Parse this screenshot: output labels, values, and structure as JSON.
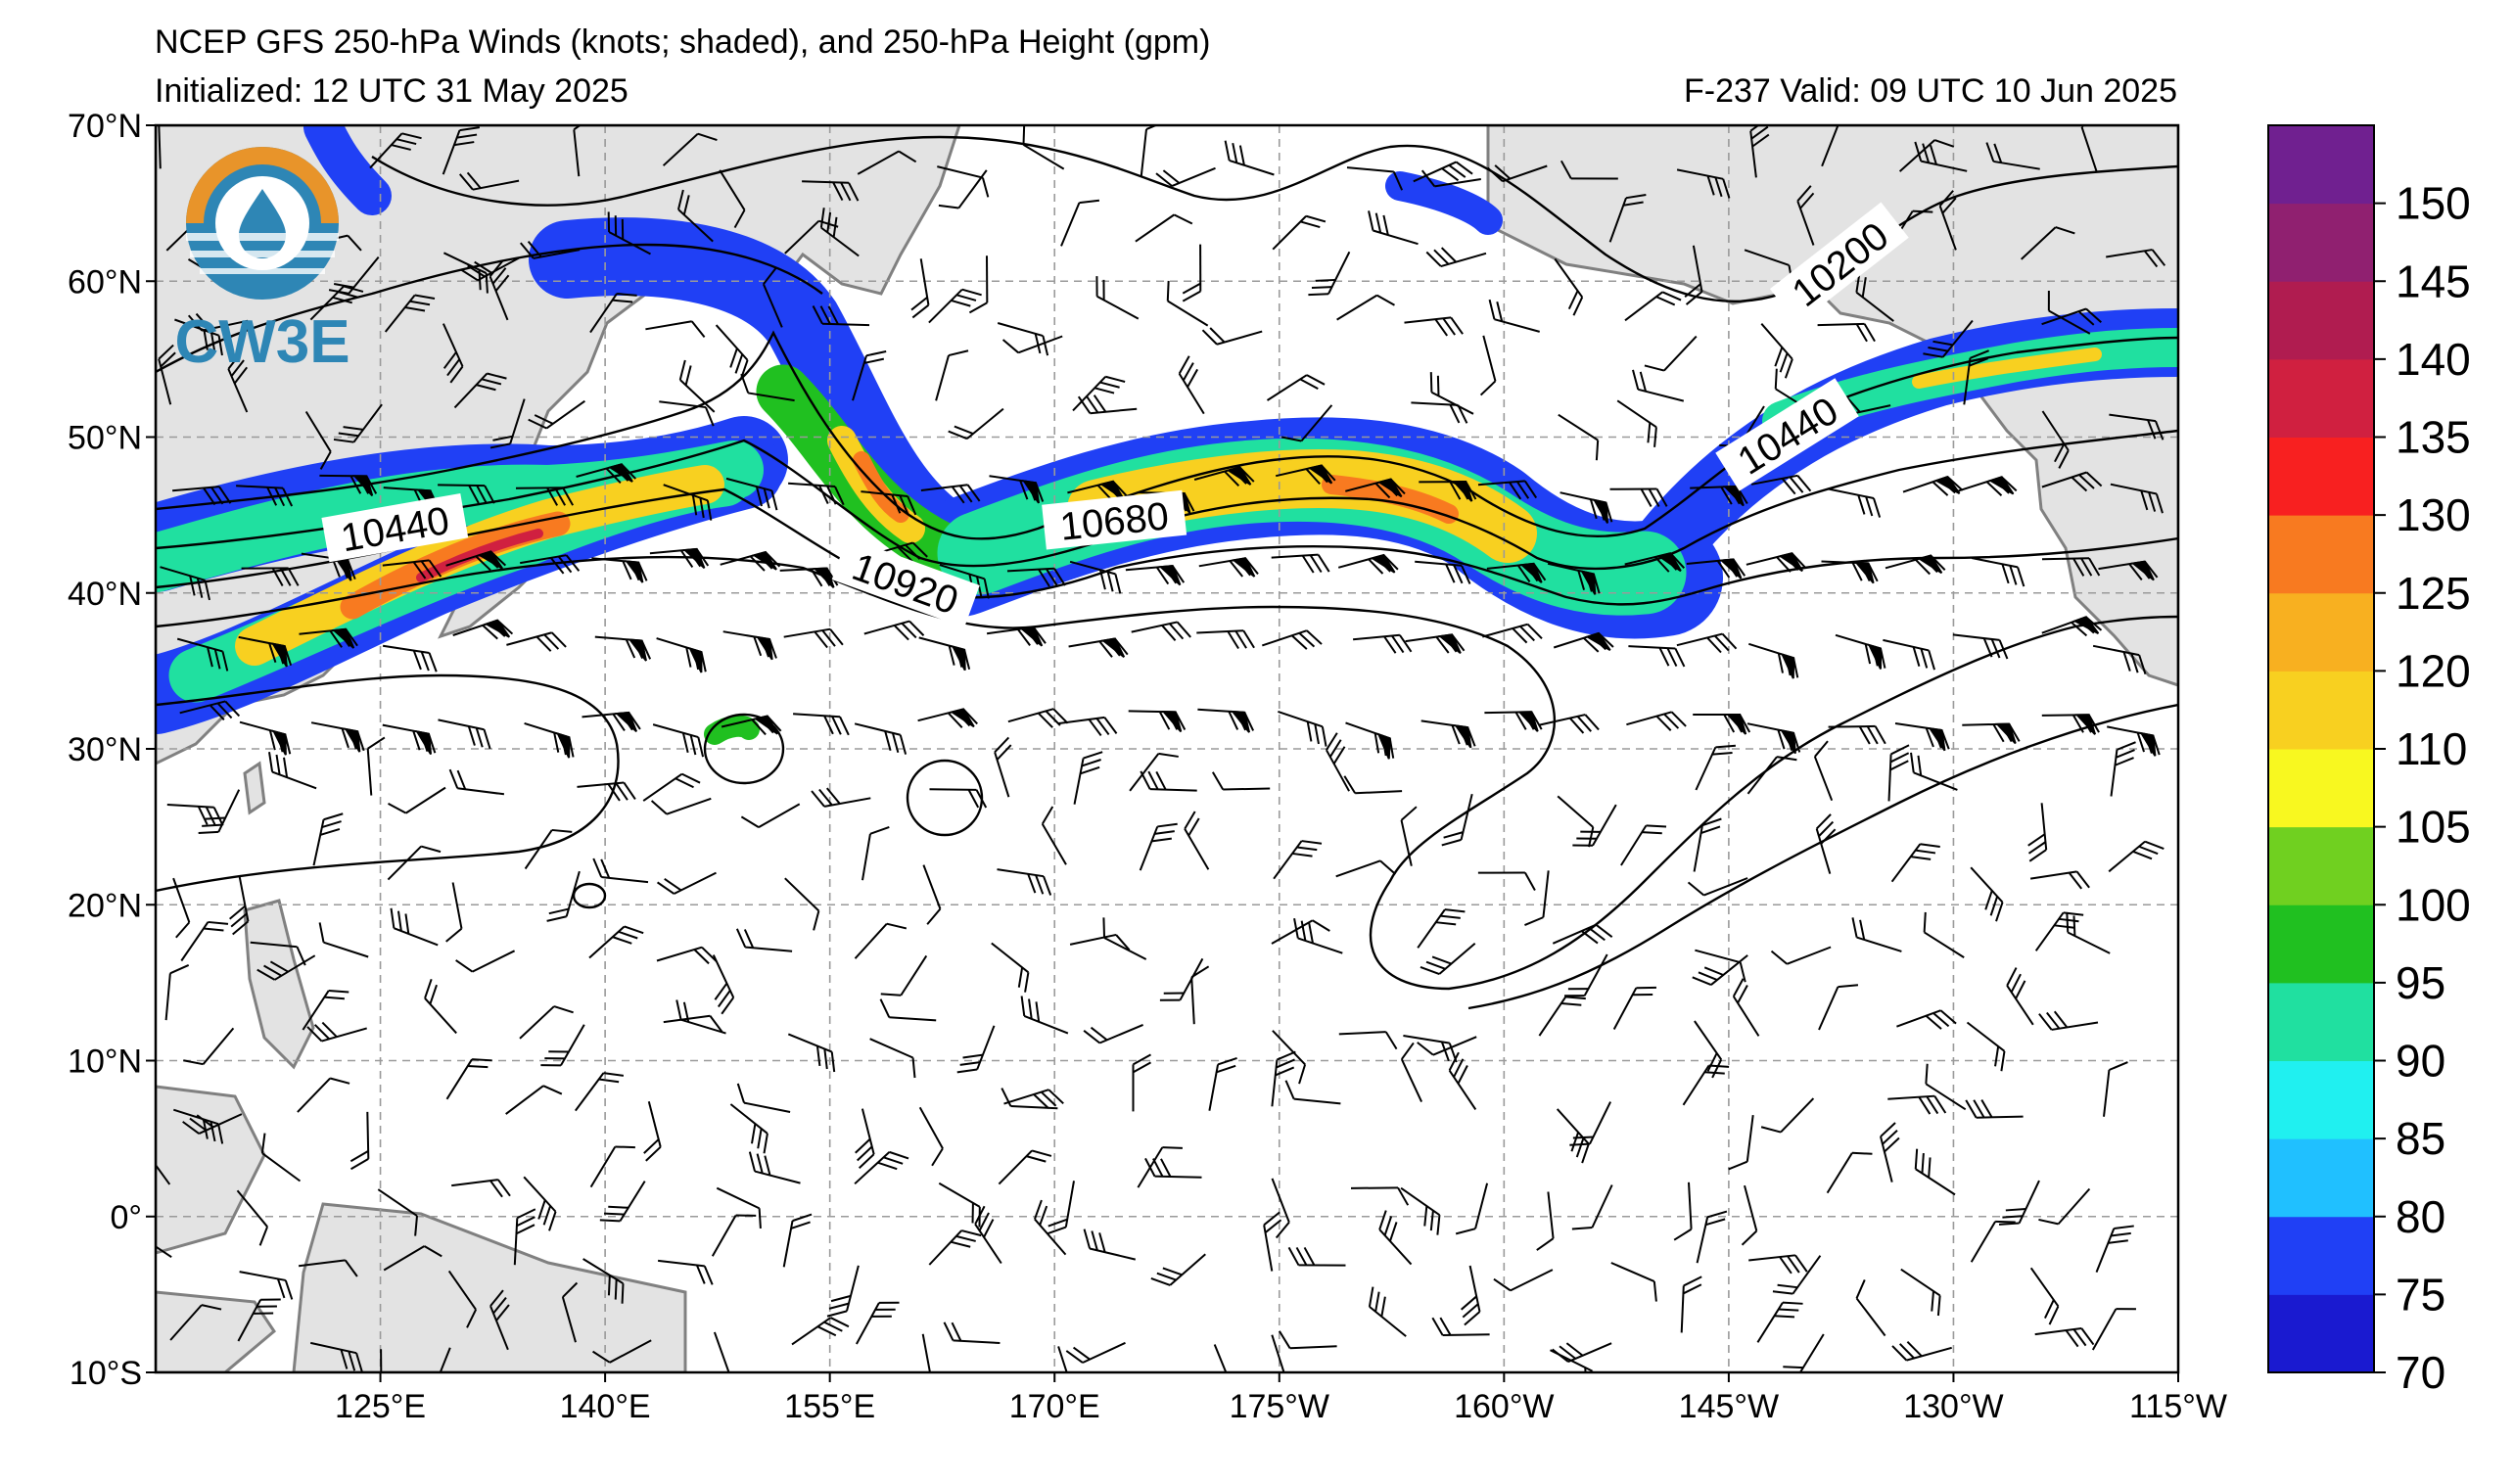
{
  "header": {
    "title": "NCEP GFS 250-hPa Winds (knots; shaded), and 250-hPa Height (gpm)",
    "initialized": "Initialized: 12 UTC 31 May 2025",
    "valid": "F-237  Valid: 09 UTC 10 Jun 2025"
  },
  "logo": {
    "text": "CW3E",
    "colors": {
      "ring": "#e8942a",
      "wave": "#2e86b5"
    }
  },
  "map": {
    "lon_range_deg_east": [
      110,
      245
    ],
    "lat_range": [
      -10,
      70
    ],
    "lon_ticks": [
      {
        "lon": 125,
        "label": "125°E"
      },
      {
        "lon": 140,
        "label": "140°E"
      },
      {
        "lon": 155,
        "label": "155°E"
      },
      {
        "lon": 170,
        "label": "170°E"
      },
      {
        "lon": 185,
        "label": "175°W"
      },
      {
        "lon": 200,
        "label": "160°W"
      },
      {
        "lon": 215,
        "label": "145°W"
      },
      {
        "lon": 230,
        "label": "130°W"
      },
      {
        "lon": 245,
        "label": "115°W"
      }
    ],
    "lat_ticks": [
      {
        "lat": 70,
        "label": "70°N"
      },
      {
        "lat": 60,
        "label": "60°N"
      },
      {
        "lat": 50,
        "label": "50°N"
      },
      {
        "lat": 40,
        "label": "40°N"
      },
      {
        "lat": 30,
        "label": "30°N"
      },
      {
        "lat": 20,
        "label": "20°N"
      },
      {
        "lat": 10,
        "label": "10°N"
      },
      {
        "lat": 0,
        "label": "0°"
      },
      {
        "lat": -10,
        "label": "10°S"
      }
    ],
    "contour_labels": [
      {
        "text": "10440",
        "lon": 126,
        "lat": 44
      },
      {
        "text": "10680",
        "lon": 174,
        "lat": 44.5
      },
      {
        "text": "10920",
        "lon": 160,
        "lat": 40.5
      },
      {
        "text": "10440",
        "lon": 219,
        "lat": 50
      },
      {
        "text": "10200",
        "lon": 222.5,
        "lat": 61
      }
    ],
    "colors": {
      "land": "#e3e3e3",
      "coast": "#808080",
      "grid": "#9a9a9a",
      "ocean": "#ffffff"
    }
  },
  "colorbar": {
    "levels": [
      70,
      75,
      80,
      85,
      90,
      95,
      100,
      105,
      110,
      120,
      125,
      130,
      135,
      140,
      145,
      150,
      155
    ],
    "labels": [
      "70",
      "75",
      "80",
      "85",
      "90",
      "95",
      "100",
      "105",
      "110",
      "120",
      "125",
      "130",
      "135",
      "140",
      "145",
      "150"
    ],
    "colors": [
      "#1a1ad0",
      "#2040f5",
      "#20c0ff",
      "#20f0f0",
      "#20e0a0",
      "#20c020",
      "#70d020",
      "#f8f820",
      "#f8d020",
      "#f8b020",
      "#f87a20",
      "#f82020",
      "#d02040",
      "#b01c50",
      "#902070",
      "#702090"
    ]
  }
}
